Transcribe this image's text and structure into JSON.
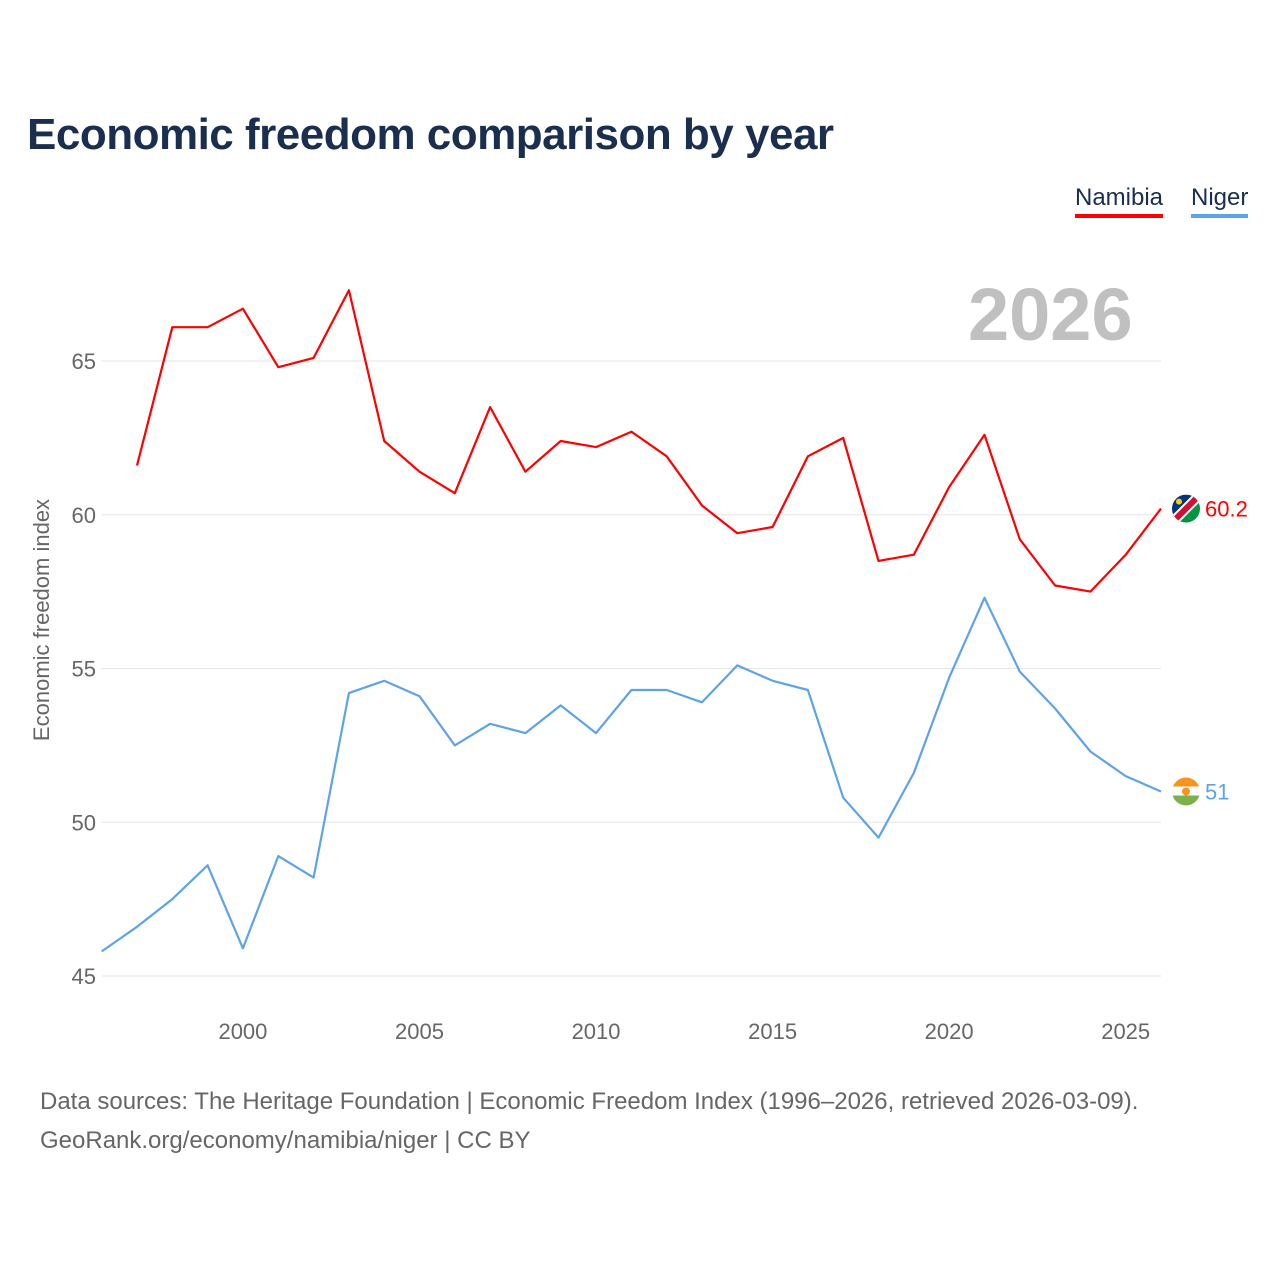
{
  "title": "Economic freedom comparison by year",
  "current_year_label": "2026",
  "source_line1": "Data sources: The Heritage Foundation | Economic Freedom Index (1996–2026, retrieved 2026-03-09).",
  "source_line2": "GeoRank.org/economy/namibia/niger | CC BY",
  "chart_data": {
    "type": "line",
    "title": "Economic freedom comparison by year",
    "xlabel": "",
    "ylabel": "Economic freedom index",
    "xlim": [
      1996,
      2026
    ],
    "ylim": [
      45,
      67.5
    ],
    "x_ticks": [
      2000,
      2005,
      2010,
      2015,
      2020,
      2025
    ],
    "y_ticks": [
      45,
      50,
      55,
      60,
      65
    ],
    "grid": true,
    "legend": "top-right",
    "series": [
      {
        "name": "Namibia",
        "color": "#ff0000",
        "end_label": "60.2",
        "x": [
          1997,
          1998,
          1999,
          2000,
          2001,
          2002,
          2003,
          2004,
          2005,
          2006,
          2007,
          2008,
          2009,
          2010,
          2011,
          2012,
          2013,
          2014,
          2015,
          2016,
          2017,
          2018,
          2019,
          2020,
          2021,
          2022,
          2023,
          2024,
          2025,
          2026
        ],
        "values": [
          61.6,
          66.1,
          66.1,
          66.7,
          64.8,
          65.1,
          67.3,
          62.4,
          61.4,
          60.7,
          63.5,
          61.4,
          62.4,
          62.2,
          62.7,
          61.9,
          60.3,
          59.4,
          59.6,
          61.9,
          62.5,
          58.5,
          58.7,
          60.9,
          62.6,
          59.2,
          57.7,
          57.5,
          58.7,
          60.2
        ]
      },
      {
        "name": "Niger",
        "color": "#5ea3e8",
        "end_label": "51",
        "x": [
          1996,
          1997,
          1998,
          1999,
          2000,
          2001,
          2002,
          2003,
          2004,
          2005,
          2006,
          2007,
          2008,
          2009,
          2010,
          2011,
          2012,
          2013,
          2014,
          2015,
          2016,
          2017,
          2018,
          2019,
          2020,
          2021,
          2022,
          2023,
          2024,
          2025,
          2026
        ],
        "values": [
          45.8,
          46.6,
          47.5,
          48.6,
          45.9,
          48.9,
          48.2,
          54.2,
          54.6,
          54.1,
          52.5,
          53.2,
          52.9,
          53.8,
          52.9,
          54.3,
          54.3,
          53.9,
          55.1,
          54.6,
          54.3,
          50.8,
          49.5,
          51.6,
          54.7,
          57.3,
          54.9,
          53.7,
          52.3,
          51.5,
          51.0
        ]
      }
    ]
  }
}
